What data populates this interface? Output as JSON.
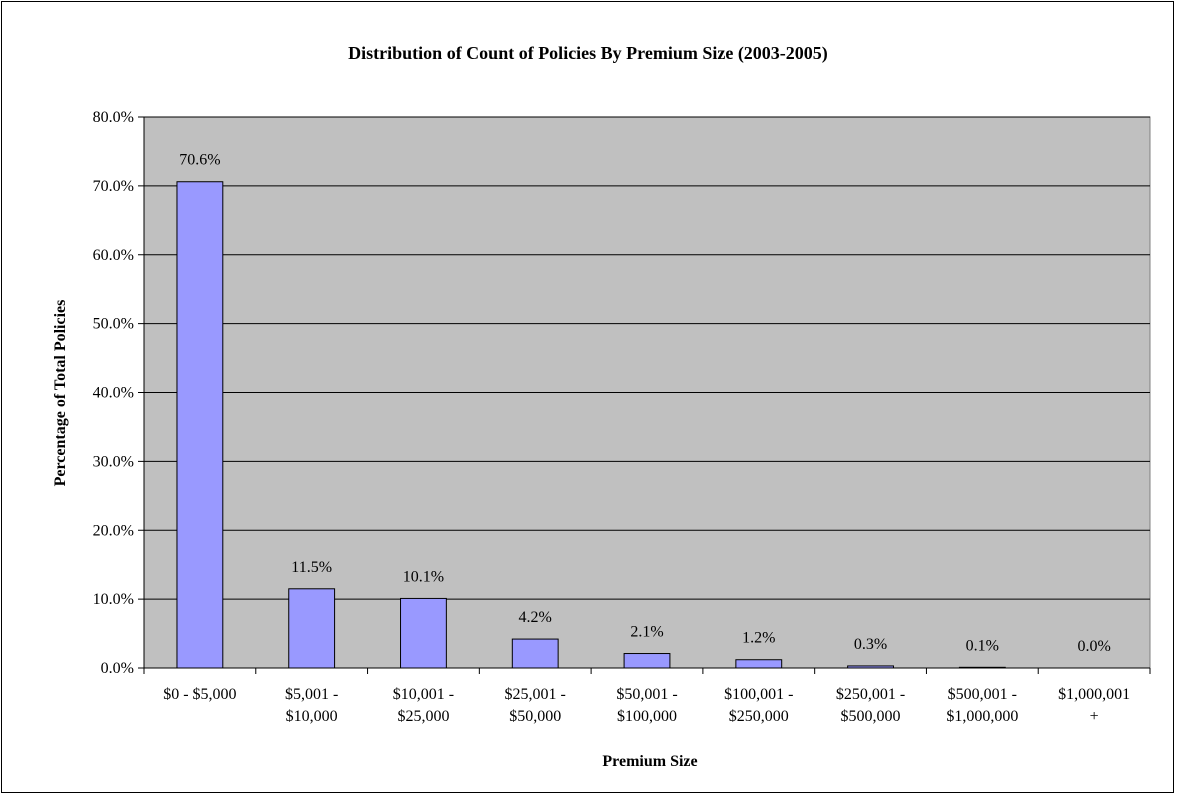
{
  "chart_data": {
    "type": "bar",
    "title": "Distribution of Count of Policies By Premium Size (2003-2005)",
    "xlabel": "Premium Size",
    "ylabel": "Percentage of Total Policies",
    "categories": [
      [
        "$0 - $5,000"
      ],
      [
        "$5,001 -",
        "$10,000"
      ],
      [
        "$10,001 -",
        "$25,000"
      ],
      [
        "$25,001 -",
        "$50,000"
      ],
      [
        "$50,001 -",
        "$100,000"
      ],
      [
        "$100,001 -",
        "$250,000"
      ],
      [
        "$250,001 -",
        "$500,000"
      ],
      [
        "$500,001 -",
        "$1,000,000"
      ],
      [
        "$1,000,001",
        "+"
      ]
    ],
    "values": [
      70.6,
      11.5,
      10.1,
      4.2,
      2.1,
      1.2,
      0.3,
      0.1,
      0.0
    ],
    "data_labels": [
      "70.6%",
      "11.5%",
      "10.1%",
      "4.2%",
      "2.1%",
      "1.2%",
      "0.3%",
      "0.1%",
      "0.0%"
    ],
    "ylim": [
      0,
      80
    ],
    "yticks": [
      0,
      10,
      20,
      30,
      40,
      50,
      60,
      70,
      80
    ],
    "ytick_labels": [
      "0.0%",
      "10.0%",
      "20.0%",
      "30.0%",
      "40.0%",
      "50.0%",
      "60.0%",
      "70.0%",
      "80.0%"
    ],
    "grid": true,
    "legend": "none",
    "colors": {
      "bar_fill": "#9999ff",
      "plot_background": "#c0c0c0",
      "gridline": "#000000"
    }
  }
}
